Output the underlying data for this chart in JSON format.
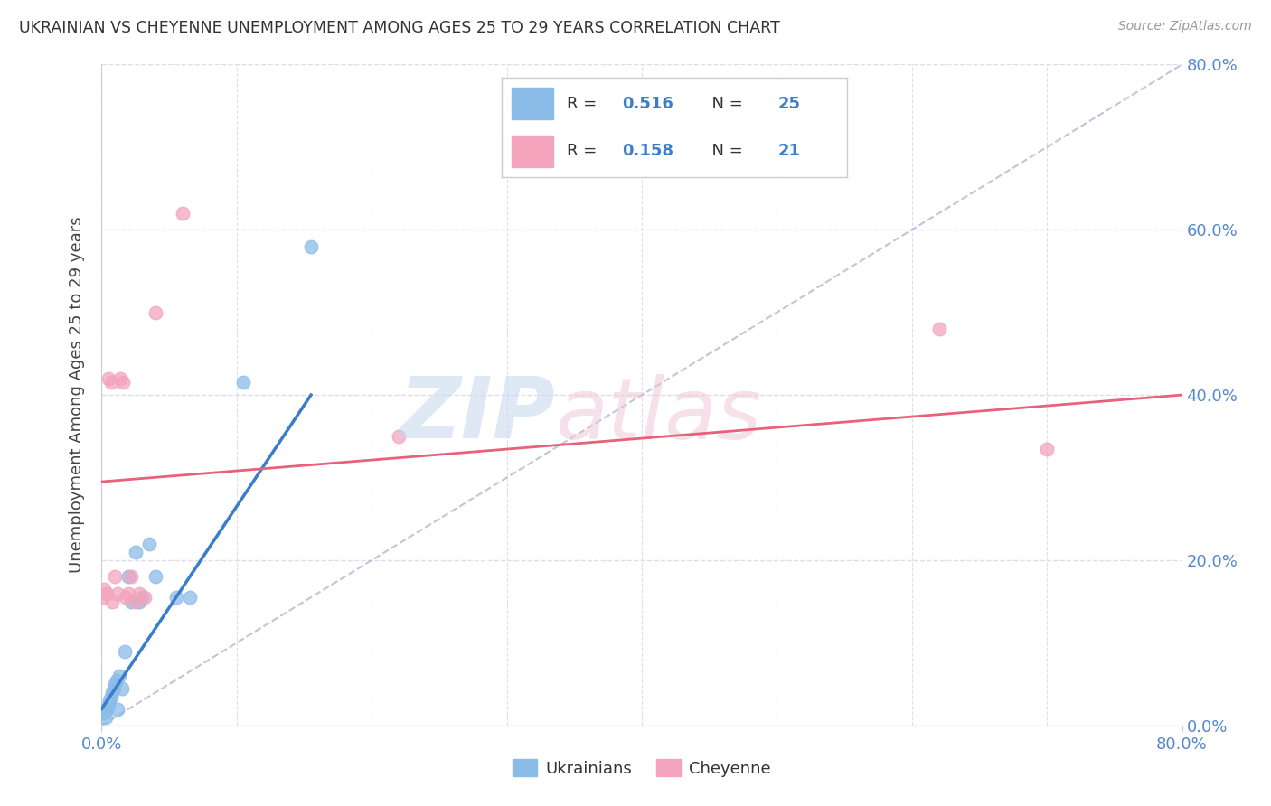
{
  "title": "UKRAINIAN VS CHEYENNE UNEMPLOYMENT AMONG AGES 25 TO 29 YEARS CORRELATION CHART",
  "source": "Source: ZipAtlas.com",
  "ylabel": "Unemployment Among Ages 25 to 29 years",
  "xlim": [
    0.0,
    0.8
  ],
  "ylim": [
    0.0,
    0.8
  ],
  "yticks": [
    0.0,
    0.2,
    0.4,
    0.6,
    0.8
  ],
  "ytick_labels": [
    "0.0%",
    "20.0%",
    "40.0%",
    "60.0%",
    "80.0%"
  ],
  "blue_R": "0.516",
  "blue_N": "25",
  "pink_R": "0.158",
  "pink_N": "21",
  "blue_scatter_color": "#8BBCE8",
  "pink_scatter_color": "#F4A4BC",
  "blue_line_color": "#3A7DC9",
  "pink_line_color": "#E8607A",
  "diag_color": "#AAAACC",
  "ukrainians_x": [
    0.002,
    0.003,
    0.004,
    0.005,
    0.006,
    0.007,
    0.008,
    0.009,
    0.01,
    0.011,
    0.012,
    0.013,
    0.015,
    0.017,
    0.02,
    0.022,
    0.025,
    0.028,
    0.03,
    0.035,
    0.04,
    0.055,
    0.065,
    0.105,
    0.155
  ],
  "ukrainians_y": [
    0.015,
    0.01,
    0.02,
    0.025,
    0.03,
    0.035,
    0.04,
    0.045,
    0.05,
    0.055,
    0.02,
    0.06,
    0.045,
    0.09,
    0.18,
    0.15,
    0.21,
    0.15,
    0.155,
    0.22,
    0.18,
    0.155,
    0.155,
    0.415,
    0.58
  ],
  "cheyenne_x": [
    0.001,
    0.002,
    0.004,
    0.005,
    0.007,
    0.008,
    0.01,
    0.012,
    0.014,
    0.016,
    0.018,
    0.02,
    0.022,
    0.025,
    0.028,
    0.032,
    0.04,
    0.06,
    0.22,
    0.62,
    0.7
  ],
  "cheyenne_y": [
    0.155,
    0.165,
    0.16,
    0.42,
    0.415,
    0.15,
    0.18,
    0.16,
    0.42,
    0.415,
    0.155,
    0.16,
    0.18,
    0.15,
    0.16,
    0.155,
    0.5,
    0.62,
    0.35,
    0.48,
    0.335
  ],
  "blue_line_x0": 0.0,
  "blue_line_x1": 0.155,
  "blue_line_y0": 0.02,
  "blue_line_y1": 0.4,
  "pink_line_x0": 0.0,
  "pink_line_x1": 0.8,
  "pink_line_y0": 0.295,
  "pink_line_y1": 0.4,
  "marker_size": 110,
  "grid_color": "#DDDDEE",
  "background_color": "#FFFFFF",
  "title_color": "#333333",
  "axis_label_color": "#5588CC",
  "figsize": [
    14.06,
    8.92
  ],
  "dpi": 100
}
